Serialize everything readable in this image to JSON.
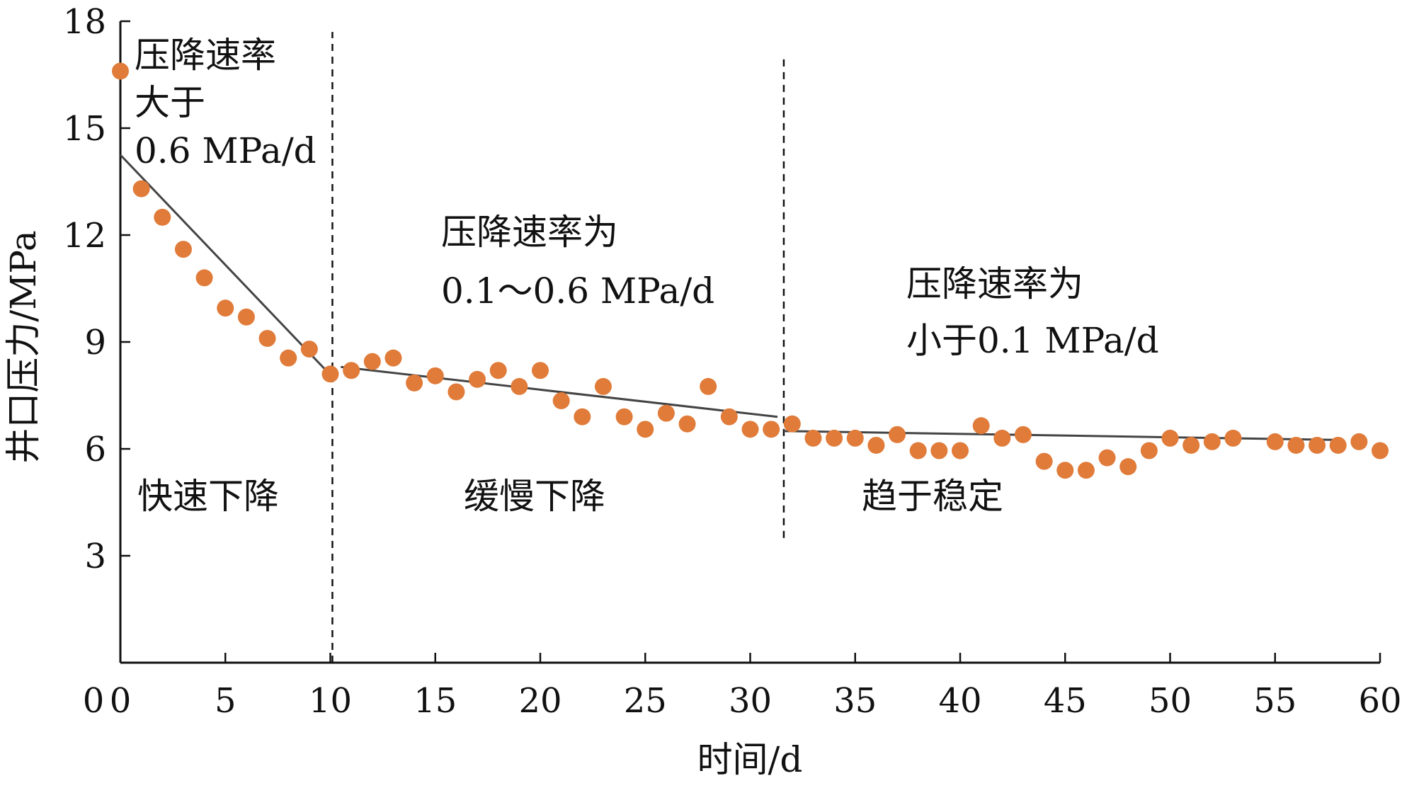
{
  "chart_data": {
    "type": "scatter",
    "xlabel": "时间/d",
    "ylabel": "井口压力/MPa",
    "xlim": [
      0,
      60
    ],
    "ylim": [
      0,
      18
    ],
    "xticks": [
      0,
      5,
      10,
      15,
      20,
      25,
      30,
      35,
      40,
      45,
      50,
      55,
      60
    ],
    "yticks": [
      3,
      6,
      9,
      12,
      15,
      18
    ],
    "grid": false,
    "point_color": "#E07B39",
    "line_color": "#444444",
    "points": [
      [
        0,
        16.6
      ],
      [
        1,
        13.3
      ],
      [
        2,
        12.5
      ],
      [
        3,
        11.6
      ],
      [
        4,
        10.8
      ],
      [
        5,
        9.95
      ],
      [
        6,
        9.7
      ],
      [
        7,
        9.1
      ],
      [
        8,
        8.55
      ],
      [
        9,
        8.8
      ],
      [
        10,
        8.1
      ],
      [
        11,
        8.2
      ],
      [
        12,
        8.45
      ],
      [
        13,
        8.55
      ],
      [
        14,
        7.85
      ],
      [
        15,
        8.05
      ],
      [
        16,
        7.6
      ],
      [
        17,
        7.95
      ],
      [
        18,
        8.2
      ],
      [
        19,
        7.75
      ],
      [
        20,
        8.2
      ],
      [
        21,
        7.35
      ],
      [
        22,
        6.9
      ],
      [
        23,
        7.75
      ],
      [
        24,
        6.9
      ],
      [
        25,
        6.55
      ],
      [
        26,
        7.0
      ],
      [
        27,
        6.7
      ],
      [
        28,
        7.75
      ],
      [
        29,
        6.9
      ],
      [
        30,
        6.55
      ],
      [
        31,
        6.55
      ],
      [
        32,
        6.7
      ],
      [
        33,
        6.3
      ],
      [
        34,
        6.3
      ],
      [
        35,
        6.3
      ],
      [
        36,
        6.1
      ],
      [
        37,
        6.4
      ],
      [
        38,
        5.95
      ],
      [
        39,
        5.95
      ],
      [
        40,
        5.95
      ],
      [
        41,
        6.65
      ],
      [
        42,
        6.3
      ],
      [
        43,
        6.4
      ],
      [
        44,
        5.65
      ],
      [
        45,
        5.4
      ],
      [
        46,
        5.4
      ],
      [
        47,
        5.75
      ],
      [
        48,
        5.5
      ],
      [
        49,
        5.95
      ],
      [
        50,
        6.3
      ],
      [
        51,
        6.1
      ],
      [
        52,
        6.2
      ],
      [
        53,
        6.3
      ],
      [
        55,
        6.2
      ],
      [
        56,
        6.1
      ],
      [
        57,
        6.1
      ],
      [
        58,
        6.1
      ],
      [
        59,
        6.2
      ],
      [
        60,
        5.95
      ]
    ],
    "trend_lines": [
      {
        "x": [
          0,
          9.8
        ],
        "y": [
          14.25,
          8.2
        ]
      },
      {
        "x": [
          10.5,
          31.3
        ],
        "y": [
          8.3,
          6.9
        ]
      },
      {
        "x": [
          31.6,
          58
        ],
        "y": [
          6.5,
          6.25
        ]
      }
    ],
    "dividers": [
      {
        "x": 10.1,
        "y": [
          0,
          17.7
        ]
      },
      {
        "x": 31.6,
        "y": [
          3.5,
          17
        ]
      }
    ],
    "annotations": {
      "stage1_rate": [
        "压降速率",
        "大于",
        "0.6 MPa/d"
      ],
      "stage2_rate": [
        "压降速率为",
        "0.1～0.6 MPa/d"
      ],
      "stage3_rate": [
        "压降速率为",
        "小于0.1 MPa/d"
      ],
      "stage1_name": "快速下降",
      "stage2_name": "缓慢下降",
      "stage3_name": "趋于稳定"
    }
  }
}
